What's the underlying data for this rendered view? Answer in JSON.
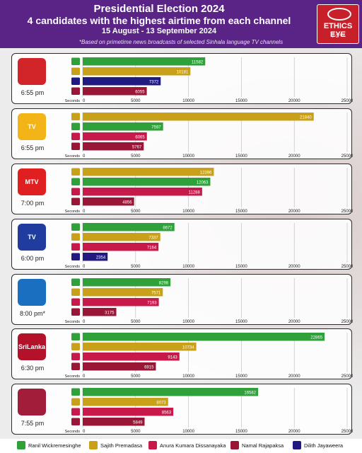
{
  "header": {
    "title": "Presidential Election 2024",
    "subtitle": "4 candidates with the highest airtime from each channel",
    "dates": "15 August - 13 September 2024",
    "note": "*Based on primetime news broadcasts of selected Sinhala language TV channels",
    "logo_text": "ETHICS EYE"
  },
  "axis": {
    "seconds_label": "Seconds",
    "ticks": [
      0,
      5000,
      10000,
      15000,
      20000,
      25000
    ]
  },
  "candidates": {
    "ranil": {
      "name": "Ranil Wickremesinghe",
      "color": "#2fa03a"
    },
    "sajith": {
      "name": "Sajith Premadasa",
      "color": "#c8a019"
    },
    "anura": {
      "name": "Anura Kumara Dissanayaka",
      "color": "#c8194b"
    },
    "namal": {
      "name": "Namal Rajapaksa",
      "color": "#9a1636"
    },
    "dilith": {
      "name": "Dilith Jayaweera",
      "color": "#211a80"
    }
  },
  "chart_data": [
    {
      "type": "bar",
      "channel_time": "6:55 pm",
      "ylim": [
        0,
        25000
      ],
      "bars": [
        {
          "candidate": "ranil",
          "value": 11582
        },
        {
          "candidate": "sajith",
          "value": 10181
        },
        {
          "candidate": "dilith",
          "value": 7372
        },
        {
          "candidate": "namal",
          "value": 6055
        }
      ]
    },
    {
      "type": "bar",
      "channel_time": "6:55 pm",
      "ylim": [
        0,
        25000
      ],
      "bars": [
        {
          "candidate": "sajith",
          "value": 21840
        },
        {
          "candidate": "ranil",
          "value": 7597
        },
        {
          "candidate": "anura",
          "value": 6065
        },
        {
          "candidate": "namal",
          "value": 5767
        }
      ]
    },
    {
      "type": "bar",
      "channel_time": "7:00 pm",
      "ylim": [
        0,
        25000
      ],
      "bars": [
        {
          "candidate": "sajith",
          "value": 12396
        },
        {
          "candidate": "ranil",
          "value": 12063
        },
        {
          "candidate": "anura",
          "value": 11288
        },
        {
          "candidate": "namal",
          "value": 4856
        }
      ]
    },
    {
      "type": "bar",
      "channel_time": "6:00 pm",
      "ylim": [
        0,
        25000
      ],
      "bars": [
        {
          "candidate": "ranil",
          "value": 8672
        },
        {
          "candidate": "sajith",
          "value": 7337
        },
        {
          "candidate": "anura",
          "value": 7164
        },
        {
          "candidate": "dilith",
          "value": 2354
        }
      ]
    },
    {
      "type": "bar",
      "channel_time": "8:00 pm*",
      "ylim": [
        0,
        25000
      ],
      "bars": [
        {
          "candidate": "ranil",
          "value": 8298
        },
        {
          "candidate": "sajith",
          "value": 7571
        },
        {
          "candidate": "anura",
          "value": 7193
        },
        {
          "candidate": "namal",
          "value": 3175
        }
      ]
    },
    {
      "type": "bar",
      "channel_time": "6:30 pm",
      "ylim": [
        0,
        25000
      ],
      "bars": [
        {
          "candidate": "ranil",
          "value": 22865
        },
        {
          "candidate": "sajith",
          "value": 10734
        },
        {
          "candidate": "anura",
          "value": 9143
        },
        {
          "candidate": "namal",
          "value": 6915
        }
      ]
    },
    {
      "type": "bar",
      "channel_time": "7:55 pm",
      "ylim": [
        0,
        25000
      ],
      "bars": [
        {
          "candidate": "ranil",
          "value": 16582
        },
        {
          "candidate": "sajith",
          "value": 8073
        },
        {
          "candidate": "anura",
          "value": 8563
        },
        {
          "candidate": "namal",
          "value": 5849
        }
      ]
    }
  ],
  "channels": [
    {
      "logo_label": "",
      "logo_icon": "derana-logo-icon",
      "logo_color": "#d1252a"
    },
    {
      "logo_label": "TV",
      "logo_icon": "hiru-sun-logo-icon",
      "logo_color": "#f2b417"
    },
    {
      "logo_label": "MTV",
      "logo_icon": "sirasa-triangle-logo-icon",
      "logo_color": "#e02020"
    },
    {
      "logo_label": "TV",
      "logo_icon": "siyatha-lion-logo-icon",
      "logo_color": "#1f3c9e"
    },
    {
      "logo_label": "",
      "logo_icon": "rupavahini-logo-icon",
      "logo_color": "#1a6fc0"
    },
    {
      "logo_label": "SriLanka",
      "logo_icon": "itn-logo-icon",
      "logo_color": "#b3122a"
    },
    {
      "logo_label": "",
      "logo_icon": "swarnavahini-logo-icon",
      "logo_color": "#a11d3a"
    }
  ],
  "legend": [
    "ranil",
    "sajith",
    "anura",
    "namal",
    "dilith"
  ]
}
